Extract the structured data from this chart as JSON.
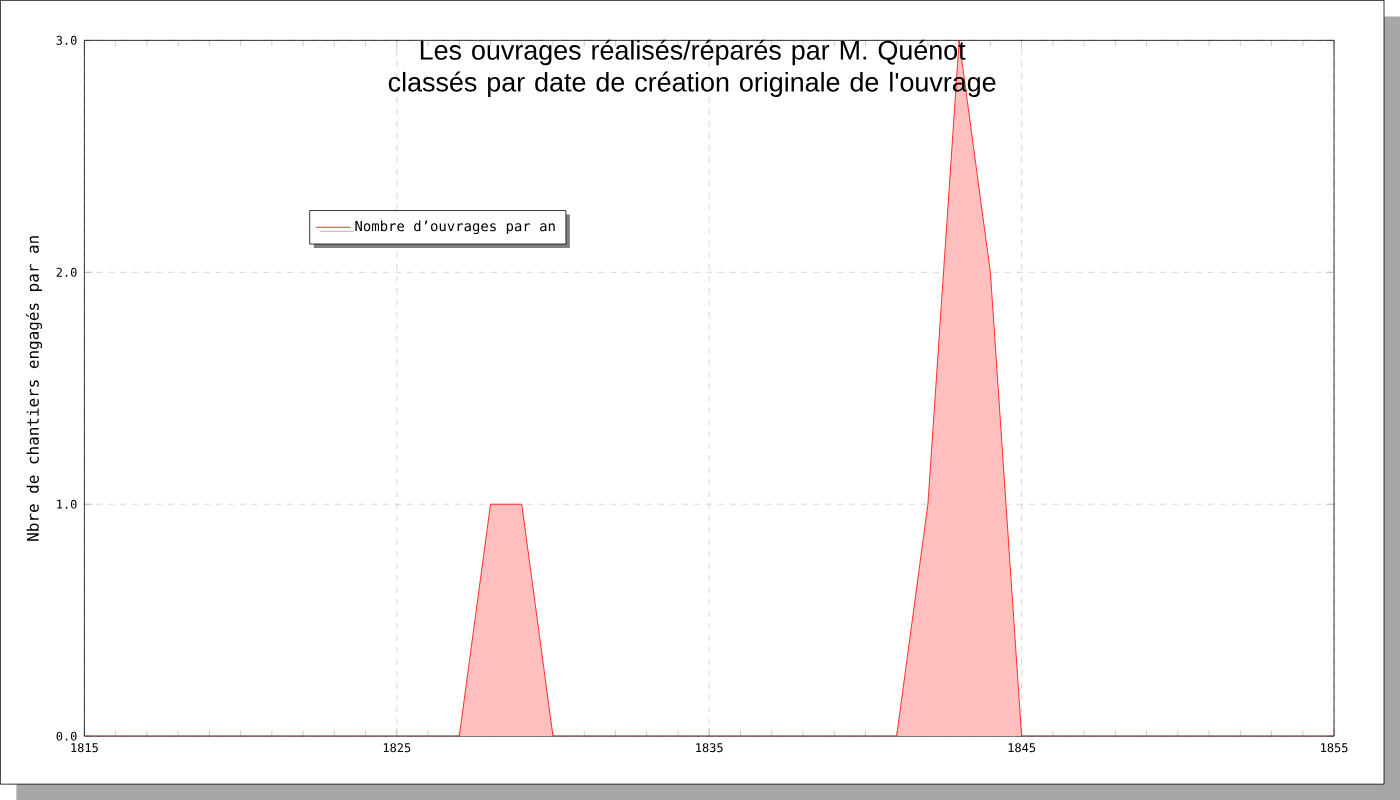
{
  "chart_data": {
    "type": "area",
    "title": "Les ouvrages réalisés/réparés par M. Quénot classés par date de création originale de l'ouvrage",
    "ylabel": "Nbre de chantiers engagés par an",
    "x": [
      1815,
      1816,
      1817,
      1818,
      1819,
      1820,
      1821,
      1822,
      1823,
      1824,
      1825,
      1826,
      1827,
      1828,
      1829,
      1830,
      1831,
      1832,
      1833,
      1834,
      1835,
      1836,
      1837,
      1838,
      1839,
      1840,
      1841,
      1842,
      1843,
      1844,
      1845,
      1846,
      1847,
      1848,
      1849,
      1850,
      1851,
      1852,
      1853,
      1854,
      1855
    ],
    "series": [
      {
        "name": "Nombre d’ouvrages par an",
        "color": "#ff0000",
        "values": [
          0,
          0,
          0,
          0,
          0,
          0,
          0,
          0,
          0,
          0,
          0,
          0,
          0,
          1,
          1,
          0,
          0,
          0,
          0,
          0,
          0,
          0,
          0,
          0,
          0,
          0,
          0,
          1,
          3,
          2,
          0,
          0,
          0,
          0,
          0,
          0,
          0,
          0,
          0,
          0,
          0
        ]
      }
    ],
    "xlim": [
      1815,
      1855
    ],
    "xticks": [
      1815,
      1825,
      1835,
      1845,
      1855
    ],
    "ylim": [
      0,
      3
    ],
    "yticks": [
      {
        "value": 0,
        "label": "0.0"
      },
      {
        "value": 1,
        "label": "1.0"
      },
      {
        "value": 2,
        "label": "2.0"
      },
      {
        "value": 3,
        "label": "3.0"
      }
    ],
    "grid": true,
    "legend": "top left",
    "marker": "none",
    "line_style": "solid"
  }
}
